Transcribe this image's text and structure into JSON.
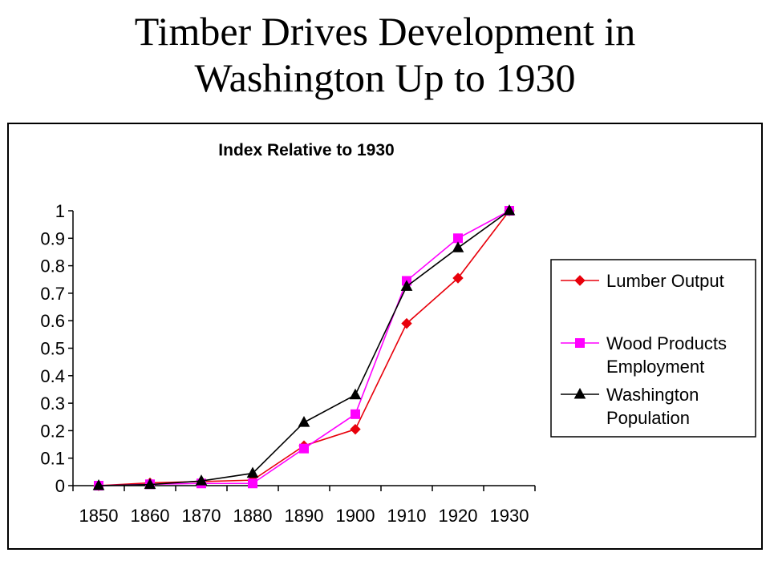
{
  "slide": {
    "title_line1": "Timber Drives Development in",
    "title_line2": "Washington Up to 1930"
  },
  "chart_data": {
    "type": "line",
    "title": "Index Relative to 1930",
    "xlabel": "",
    "ylabel": "",
    "categories": [
      "1850",
      "1860",
      "1870",
      "1880",
      "1890",
      "1900",
      "1910",
      "1920",
      "1930"
    ],
    "ylim": [
      0,
      1
    ],
    "yticks": [
      "0",
      "0.1",
      "0.2",
      "0.3",
      "0.4",
      "0.5",
      "0.6",
      "0.7",
      "0.8",
      "0.9",
      "1"
    ],
    "grid": false,
    "legend_position": "right",
    "series": [
      {
        "name": "Lumber Output",
        "legend_lines": [
          "Lumber Output"
        ],
        "color": "#e8000b",
        "marker": "diamond",
        "values": [
          0.0,
          0.01,
          0.015,
          0.02,
          0.145,
          0.205,
          0.59,
          0.755,
          1.0
        ]
      },
      {
        "name": "Wood Products Employment",
        "legend_lines": [
          "Wood Products",
          "Employment"
        ],
        "color": "#ff00ff",
        "marker": "square",
        "values": [
          0.0,
          0.005,
          0.008,
          0.008,
          0.135,
          0.26,
          0.745,
          0.9,
          1.0
        ]
      },
      {
        "name": "Washington Population",
        "legend_lines": [
          "Washington",
          "Population"
        ],
        "color": "#000000",
        "marker": "triangle",
        "values": [
          0.0,
          0.004,
          0.017,
          0.045,
          0.23,
          0.33,
          0.725,
          0.865,
          1.0
        ]
      }
    ]
  }
}
